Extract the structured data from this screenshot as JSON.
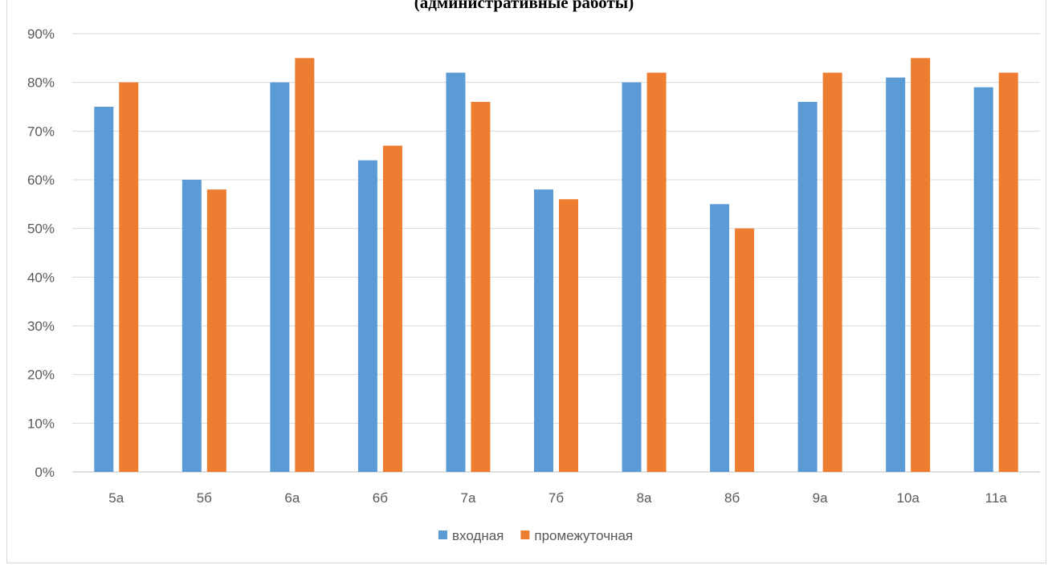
{
  "chart_data": {
    "type": "bar",
    "title": "(административные работы)",
    "categories": [
      "5а",
      "5б",
      "6а",
      "6б",
      "7а",
      "7б",
      "8а",
      "8б",
      "9а",
      "10а",
      "11а"
    ],
    "series": [
      {
        "name": "входная",
        "color": "#5b9bd5",
        "values": [
          75,
          60,
          80,
          64,
          82,
          58,
          80,
          55,
          76,
          81,
          79
        ]
      },
      {
        "name": "промежуточная",
        "color": "#ed7d31",
        "values": [
          80,
          58,
          85,
          67,
          76,
          56,
          82,
          50,
          82,
          85,
          82
        ]
      }
    ],
    "yticks": [
      "0%",
      "10%",
      "20%",
      "30%",
      "40%",
      "50%",
      "60%",
      "70%",
      "80%",
      "90%"
    ],
    "ylim": [
      0,
      90
    ],
    "grid": true,
    "legend": "bottom"
  }
}
